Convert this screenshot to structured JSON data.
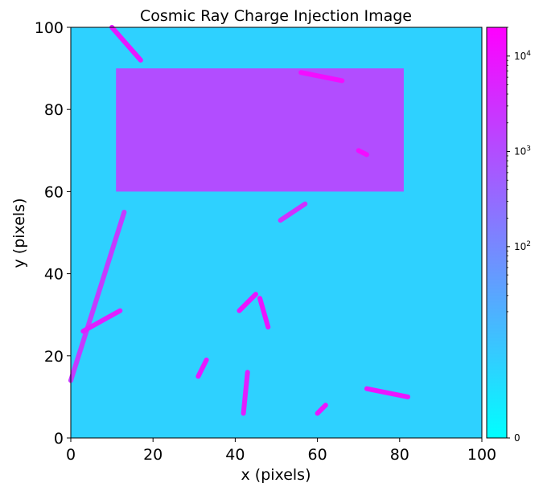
{
  "chart_data": {
    "type": "heatmap",
    "title": "Cosmic Ray Charge Injection Image",
    "xlabel": "x (pixels)",
    "ylabel": "y (pixels)",
    "xlim": [
      0,
      100
    ],
    "ylim": [
      0,
      100
    ],
    "xticks": [
      "0",
      "20",
      "40",
      "60",
      "80",
      "100"
    ],
    "yticks": [
      "0",
      "20",
      "40",
      "60",
      "80",
      "100"
    ],
    "colormap": "cool",
    "colors": {
      "low": "#00ffff",
      "high": "#ff00ff"
    },
    "grid": false,
    "colorbar": {
      "scale": "symlog",
      "min": 0,
      "max": 20000,
      "ticks": [
        {
          "value": 0,
          "base": "0",
          "exp": ""
        },
        {
          "value": 100,
          "base": "10",
          "exp": "2"
        },
        {
          "value": 1000,
          "base": "10",
          "exp": "3"
        },
        {
          "value": 10000,
          "base": "10",
          "exp": "4"
        }
      ]
    },
    "background_level": 5,
    "charge_injection_region": {
      "x": [
        11,
        81
      ],
      "y": [
        60,
        90
      ],
      "level": 1000
    },
    "tracks": [
      {
        "x": [
          10,
          17
        ],
        "y": [
          100,
          92
        ],
        "level": 8000
      },
      {
        "x": [
          56,
          66
        ],
        "y": [
          89,
          87
        ],
        "level": 12000
      },
      {
        "x": [
          70,
          72
        ],
        "y": [
          70,
          69
        ],
        "level": 12000
      },
      {
        "x": [
          51,
          57
        ],
        "y": [
          53,
          57
        ],
        "level": 3000
      },
      {
        "x": [
          0,
          13
        ],
        "y": [
          14,
          55
        ],
        "level": 2000
      },
      {
        "x": [
          3,
          12
        ],
        "y": [
          26,
          31
        ],
        "level": 6000
      },
      {
        "x": [
          41,
          45
        ],
        "y": [
          31,
          35
        ],
        "level": 9000
      },
      {
        "x": [
          46,
          48
        ],
        "y": [
          34,
          27
        ],
        "level": 9000
      },
      {
        "x": [
          31,
          33
        ],
        "y": [
          15,
          19
        ],
        "level": 8000
      },
      {
        "x": [
          42,
          43
        ],
        "y": [
          6,
          16
        ],
        "level": 6000
      },
      {
        "x": [
          60,
          62
        ],
        "y": [
          6,
          8
        ],
        "level": 9000
      },
      {
        "x": [
          72,
          82
        ],
        "y": [
          12,
          10
        ],
        "level": 9000
      }
    ]
  }
}
